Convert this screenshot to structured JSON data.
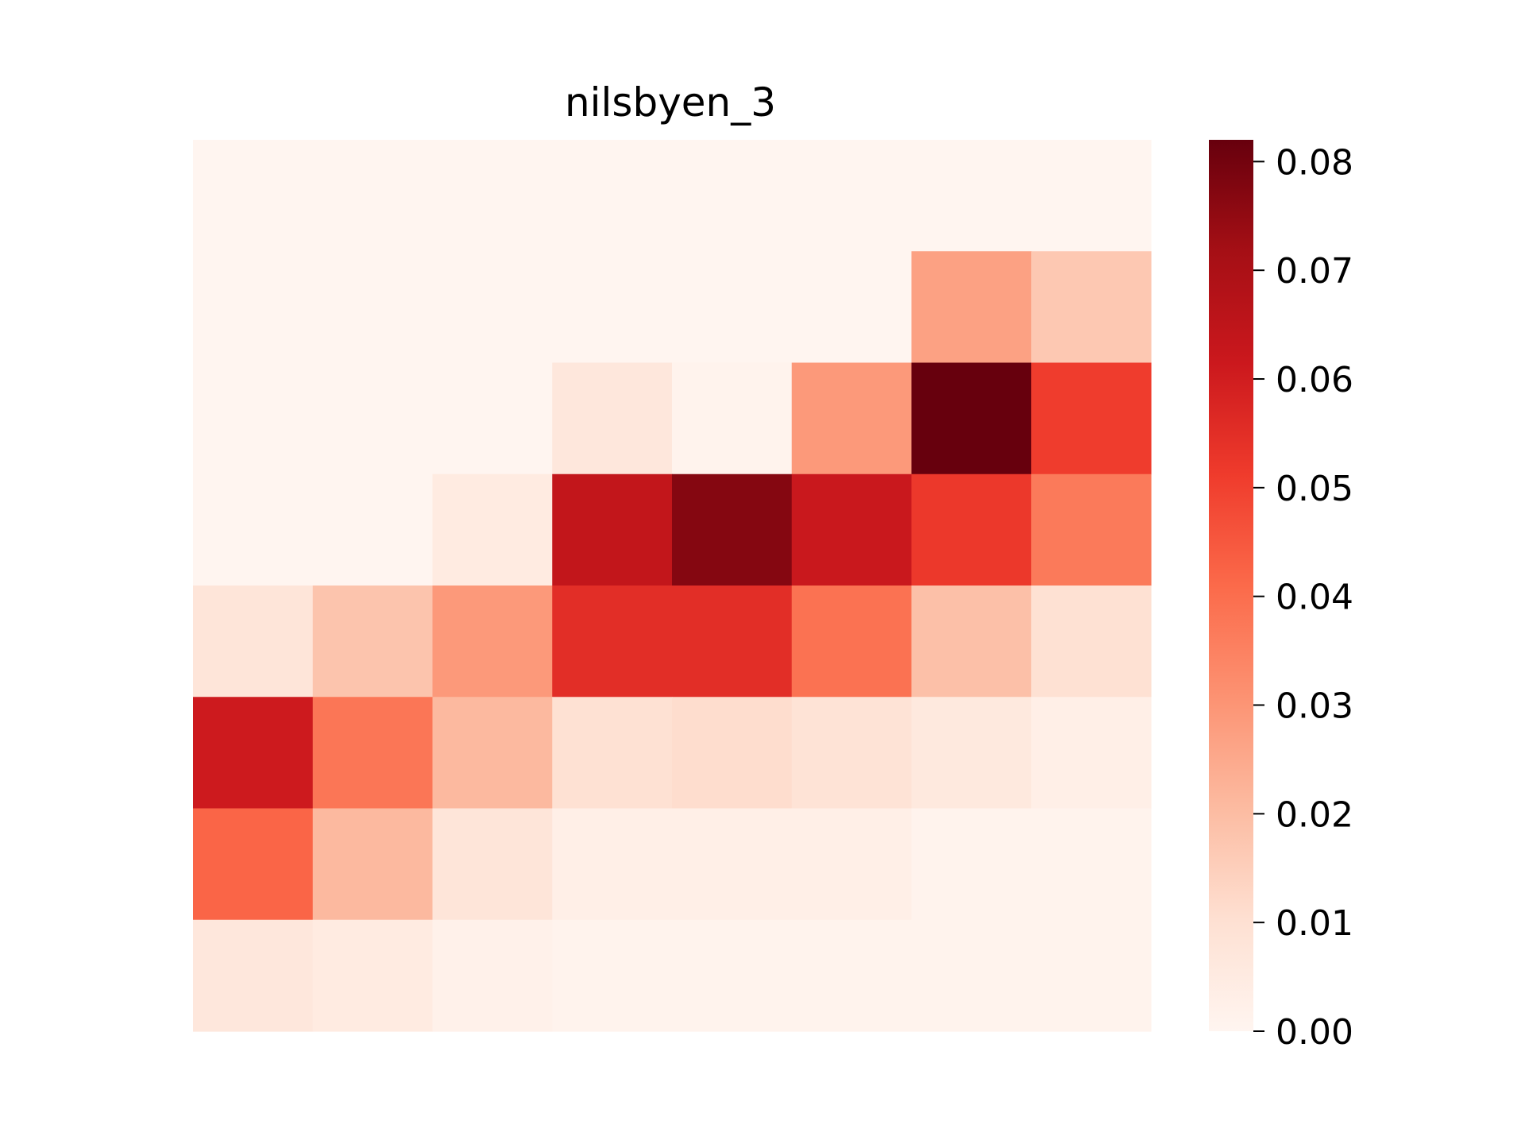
{
  "chart_data": {
    "type": "heatmap",
    "title": "nilsbyen_3",
    "xlabel": "",
    "ylabel": "",
    "rows": 8,
    "cols": 8,
    "values": [
      [
        0.0,
        0.0,
        0.0,
        0.0,
        0.0,
        0.0,
        0.0,
        0.0
      ],
      [
        0.0,
        0.0,
        0.0,
        0.0,
        0.0,
        0.0,
        0.027,
        0.017
      ],
      [
        0.0,
        0.0,
        0.0,
        0.007,
        0.001,
        0.029,
        0.082,
        0.051
      ],
      [
        0.0,
        0.0,
        0.005,
        0.064,
        0.077,
        0.062,
        0.052,
        0.037
      ],
      [
        0.008,
        0.018,
        0.029,
        0.055,
        0.055,
        0.039,
        0.019,
        0.01
      ],
      [
        0.061,
        0.038,
        0.021,
        0.01,
        0.011,
        0.009,
        0.006,
        0.003
      ],
      [
        0.042,
        0.021,
        0.008,
        0.003,
        0.003,
        0.003,
        0.001,
        0.001
      ],
      [
        0.007,
        0.005,
        0.002,
        0.001,
        0.001,
        0.001,
        0.001,
        0.001
      ]
    ],
    "vmin": 0.0,
    "vmax": 0.082,
    "colormap": "Reds",
    "colormap_stops": [
      "#fff5f0",
      "#fee0d2",
      "#fcbba1",
      "#fc9272",
      "#fb6a4a",
      "#ef3b2c",
      "#cb181d",
      "#a50f15",
      "#67000d"
    ],
    "colorbar_ticks": [
      0.0,
      0.01,
      0.02,
      0.03,
      0.04,
      0.05,
      0.06,
      0.07,
      0.08
    ],
    "colorbar_tick_labels": [
      "0.00",
      "0.01",
      "0.02",
      "0.03",
      "0.04",
      "0.05",
      "0.06",
      "0.07",
      "0.08"
    ],
    "colorbar_placement": "right",
    "grid": false
  }
}
